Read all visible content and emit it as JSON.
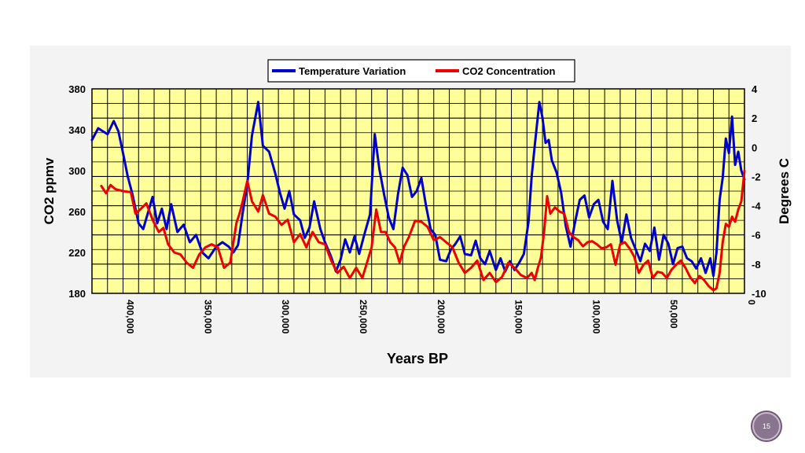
{
  "slide": {
    "page_number": "15"
  },
  "colors": {
    "plot_background": "#ffff99",
    "grid": "#000000",
    "temperature": "#0000cc",
    "co2": "#ee0000",
    "panel": "#f3f3f3",
    "badge": "#8a7590"
  },
  "chart_data": {
    "type": "line",
    "title": "",
    "xlabel": "Years BP",
    "ylabel_left": "CO2 ppmv",
    "ylabel_right": "Degrees C",
    "x_reversed": true,
    "xlim": [
      420000,
      0
    ],
    "ylim_left": [
      180,
      380
    ],
    "ylim_right": [
      -10,
      4
    ],
    "x_ticks": [
      400000,
      350000,
      300000,
      250000,
      200000,
      150000,
      100000,
      50000,
      0
    ],
    "x_tick_labels": [
      "400,000",
      "350,000",
      "300,000",
      "250,000",
      "200,000",
      "150,000",
      "100,000",
      "50,000",
      "0"
    ],
    "y_left_ticks": [
      380,
      340,
      300,
      260,
      220,
      180
    ],
    "y_left_tick_labels": [
      "380",
      "340",
      "300",
      "260",
      "220",
      "180"
    ],
    "y_right_ticks": [
      4,
      2,
      0,
      -2,
      -4,
      -6,
      -8,
      -10
    ],
    "y_right_tick_labels": [
      "4",
      "2",
      "0",
      "-2",
      "-4",
      "-6",
      "-8",
      "-10"
    ],
    "grid": true,
    "legend_position": "top-center",
    "series": [
      {
        "name": "Temperature Variation",
        "axis": "right",
        "color": "#0000cc",
        "x": [
          420000,
          416000,
          413000,
          410000,
          406000,
          403000,
          400000,
          397000,
          394000,
          390000,
          387000,
          384000,
          381000,
          378000,
          375000,
          372000,
          369000,
          365000,
          361000,
          357000,
          353000,
          349000,
          345000,
          340000,
          336000,
          332000,
          329000,
          326000,
          323000,
          320000,
          317000,
          313000,
          310000,
          306000,
          302000,
          299000,
          296000,
          293000,
          290000,
          286000,
          283000,
          280000,
          277000,
          273000,
          270000,
          266000,
          263000,
          260000,
          257000,
          254000,
          251000,
          248000,
          245000,
          241000,
          238000,
          235000,
          232000,
          229000,
          226000,
          223000,
          220000,
          217000,
          214000,
          211000,
          208000,
          205000,
          202000,
          199000,
          196000,
          192000,
          189000,
          186000,
          183000,
          180000,
          176000,
          173000,
          170000,
          167000,
          164000,
          160000,
          157000,
          154000,
          151000,
          148000,
          145000,
          142000,
          139000,
          137000,
          135000,
          132000,
          130000,
          128000,
          126000,
          124000,
          121000,
          118000,
          115000,
          112000,
          109000,
          106000,
          103000,
          100000,
          97000,
          94000,
          91000,
          88000,
          85000,
          82000,
          79000,
          76000,
          73000,
          70000,
          67000,
          64000,
          61000,
          58000,
          55000,
          52000,
          49000,
          46000,
          43000,
          40000,
          37000,
          34000,
          31000,
          28000,
          25000,
          22000,
          20000,
          18000,
          16000,
          14000,
          12000,
          10000,
          8000,
          6000,
          4000,
          2000,
          0
        ],
        "values": [
          0.5,
          1.3,
          1.1,
          0.9,
          1.8,
          1.1,
          -0.4,
          -2.0,
          -3.2,
          -5.2,
          -5.6,
          -4.5,
          -3.4,
          -5.2,
          -4.2,
          -5.6,
          -3.9,
          -5.8,
          -5.3,
          -6.5,
          -6.0,
          -7.2,
          -7.6,
          -6.8,
          -6.5,
          -6.8,
          -7.2,
          -6.7,
          -4.5,
          -2.5,
          0.8,
          3.1,
          0.1,
          -0.3,
          -1.8,
          -3.1,
          -4.2,
          -3.0,
          -4.6,
          -5.0,
          -6.2,
          -5.5,
          -3.7,
          -5.6,
          -6.5,
          -7.5,
          -8.5,
          -7.7,
          -6.3,
          -7.2,
          -6.1,
          -7.3,
          -6.1,
          -4.6,
          0.9,
          -1.5,
          -3.2,
          -4.8,
          -5.6,
          -3.2,
          -1.4,
          -1.9,
          -3.4,
          -3.0,
          -2.1,
          -4.0,
          -5.6,
          -6.0,
          -7.7,
          -7.8,
          -7.0,
          -6.6,
          -6.1,
          -7.3,
          -7.4,
          -6.4,
          -7.6,
          -8.0,
          -7.1,
          -8.4,
          -7.6,
          -8.5,
          -7.8,
          -8.4,
          -7.9,
          -7.3,
          -5.1,
          -2.0,
          0.1,
          3.1,
          2.0,
          0.3,
          0.5,
          -0.9,
          -1.7,
          -3.1,
          -5.4,
          -6.8,
          -5.1,
          -3.6,
          -3.3,
          -4.8,
          -3.9,
          -3.6,
          -5.1,
          -5.6,
          -2.3,
          -5.0,
          -6.5,
          -4.6,
          -6.2,
          -7.0,
          -7.8,
          -6.6,
          -7.1,
          -5.5,
          -7.7,
          -6.0,
          -6.6,
          -8.0,
          -6.9,
          -6.8,
          -7.6,
          -7.8,
          -8.3,
          -7.6,
          -8.6,
          -7.6,
          -8.8,
          -7.2,
          -3.6,
          -2.1,
          0.6,
          -0.4,
          2.1,
          -1.2,
          -0.3,
          -1.6,
          -2.2
        ]
      },
      {
        "name": "CO2 Concentration",
        "axis": "left",
        "color": "#ee0000",
        "x": [
          414000,
          411000,
          408000,
          405000,
          400000,
          395000,
          392000,
          389000,
          385000,
          381000,
          377000,
          374000,
          371000,
          367000,
          363000,
          359000,
          355000,
          351000,
          347000,
          343000,
          339000,
          335000,
          331000,
          327000,
          325000,
          323000,
          320000,
          317000,
          313000,
          310000,
          306000,
          302000,
          298000,
          294000,
          290000,
          286000,
          282000,
          278000,
          274000,
          270000,
          266000,
          262000,
          258000,
          254000,
          250000,
          246000,
          243000,
          240000,
          237000,
          234000,
          231000,
          228000,
          225000,
          222000,
          219000,
          216000,
          212000,
          208000,
          204000,
          200000,
          196000,
          192000,
          188000,
          184000,
          180000,
          176000,
          172000,
          168000,
          164000,
          160000,
          156000,
          152000,
          148000,
          144000,
          140000,
          137000,
          135000,
          133000,
          131000,
          129000,
          127000,
          125000,
          122000,
          119000,
          116000,
          113000,
          110000,
          107000,
          104000,
          101000,
          98000,
          95000,
          92000,
          89000,
          86000,
          83000,
          80000,
          77000,
          74000,
          71000,
          68000,
          65000,
          62000,
          59000,
          56000,
          53000,
          50000,
          47000,
          44000,
          41000,
          38000,
          35000,
          32000,
          29000,
          26000,
          23000,
          20000,
          18000,
          16000,
          14000,
          12000,
          10000,
          8000,
          6000,
          4000,
          2000,
          0
        ],
        "values": [
          285,
          278,
          286,
          282,
          280,
          279,
          258,
          262,
          268,
          252,
          240,
          244,
          228,
          220,
          218,
          210,
          205,
          218,
          225,
          228,
          225,
          205,
          210,
          249,
          258,
          270,
          290,
          270,
          260,
          276,
          258,
          255,
          247,
          252,
          230,
          238,
          225,
          240,
          230,
          228,
          212,
          200,
          206,
          195,
          205,
          195,
          210,
          225,
          262,
          240,
          240,
          230,
          225,
          210,
          226,
          235,
          251,
          250,
          245,
          232,
          235,
          230,
          225,
          210,
          200,
          205,
          212,
          193,
          200,
          191,
          196,
          210,
          205,
          198,
          195,
          200,
          193,
          205,
          215,
          240,
          275,
          258,
          264,
          260,
          258,
          240,
          235,
          232,
          226,
          230,
          231,
          228,
          224,
          225,
          228,
          208,
          228,
          230,
          224,
          216,
          200,
          208,
          212,
          195,
          201,
          200,
          195,
          203,
          208,
          212,
          205,
          196,
          190,
          197,
          193,
          187,
          183,
          185,
          200,
          230,
          248,
          245,
          255,
          250,
          262,
          270,
          300
        ]
      }
    ]
  }
}
